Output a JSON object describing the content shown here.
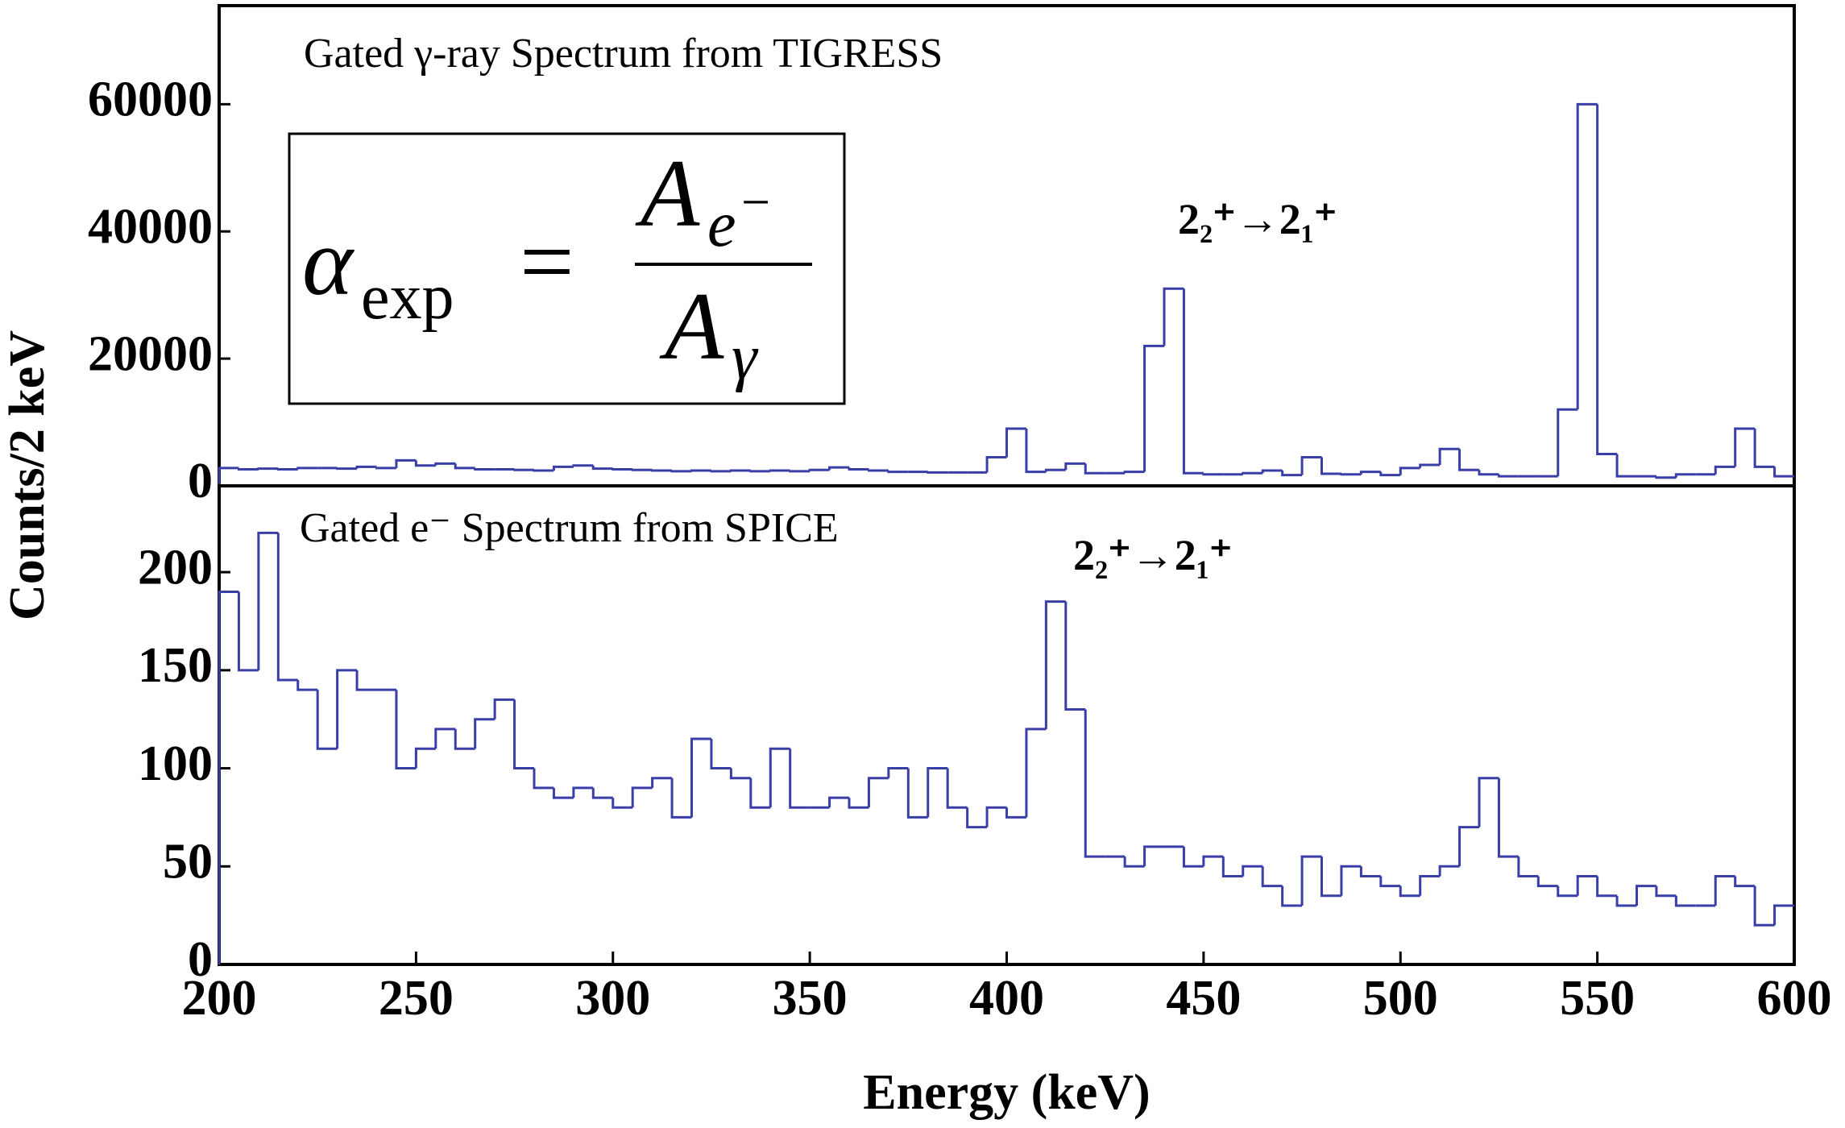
{
  "chart_data": [
    {
      "type": "histogram",
      "title": "Gated γ-ray Spectrum from TIGRESS",
      "ylabel": "Counts/2 keV",
      "annotation": "2₂⁺→2₁⁺",
      "formula": {
        "alpha": "α",
        "alpha_sub": "exp",
        "equals": "=",
        "num": "A",
        "num_sub": "e",
        "num_sup": "−",
        "den": "A",
        "den_sub": "γ"
      },
      "color": "#3a3fa8",
      "xlim": [
        200,
        600
      ],
      "ylim": [
        0,
        75500
      ],
      "yticks": [
        0,
        20000,
        40000,
        60000
      ],
      "bins": [
        200,
        205,
        210,
        215,
        220,
        225,
        230,
        235,
        240,
        245,
        250,
        255,
        260,
        265,
        270,
        275,
        280,
        285,
        290,
        295,
        300,
        305,
        310,
        315,
        320,
        325,
        330,
        335,
        340,
        345,
        350,
        355,
        360,
        365,
        370,
        375,
        380,
        385,
        390,
        395,
        400,
        405,
        410,
        415,
        420,
        425,
        430,
        435,
        440,
        445,
        450,
        455,
        460,
        465,
        470,
        475,
        480,
        485,
        490,
        495,
        500,
        505,
        510,
        515,
        520,
        525,
        530,
        535,
        540,
        545,
        550,
        555,
        560,
        565,
        570,
        575,
        580,
        585,
        590,
        595,
        600
      ],
      "values": [
        2800,
        2600,
        2700,
        2600,
        2800,
        2800,
        2700,
        3000,
        2800,
        4000,
        3200,
        3500,
        2800,
        2600,
        2600,
        2500,
        2400,
        3000,
        3200,
        2700,
        2600,
        2500,
        2400,
        2300,
        2400,
        2300,
        2400,
        2300,
        2400,
        2300,
        2500,
        2900,
        2600,
        2400,
        2200,
        2200,
        2100,
        2100,
        2100,
        4500,
        9000,
        2200,
        2500,
        3500,
        2000,
        2000,
        2200,
        22000,
        31000,
        2000,
        1800,
        1800,
        2000,
        2400,
        1700,
        4500,
        1900,
        1800,
        2200,
        1700,
        2800,
        3300,
        5800,
        2500,
        1800,
        1500,
        1500,
        1500,
        12000,
        60000,
        5000,
        1500,
        1500,
        1300,
        1800,
        1800,
        3000,
        9000,
        3000,
        1500
      ]
    },
    {
      "type": "histogram",
      "title": "Gated e⁻ Spectrum from SPICE",
      "xlabel": "Energy (keV)",
      "annotation": "2₂⁺→2₁⁺",
      "color": "#3a3fa8",
      "xlim": [
        200,
        600
      ],
      "ylim": [
        0,
        244
      ],
      "yticks": [
        0,
        50,
        100,
        150,
        200
      ],
      "xticks": [
        200,
        250,
        300,
        350,
        400,
        450,
        500,
        550,
        600
      ],
      "bins": [
        200,
        205,
        210,
        215,
        220,
        225,
        230,
        235,
        240,
        245,
        250,
        255,
        260,
        265,
        270,
        275,
        280,
        285,
        290,
        295,
        300,
        305,
        310,
        315,
        320,
        325,
        330,
        335,
        340,
        345,
        350,
        355,
        360,
        365,
        370,
        375,
        380,
        385,
        390,
        395,
        400,
        405,
        410,
        415,
        420,
        425,
        430,
        435,
        440,
        445,
        450,
        455,
        460,
        465,
        470,
        475,
        480,
        485,
        490,
        495,
        500,
        505,
        510,
        515,
        520,
        525,
        530,
        535,
        540,
        545,
        550,
        555,
        560,
        565,
        570,
        575,
        580,
        585,
        590,
        595,
        600
      ],
      "values": [
        190,
        150,
        220,
        145,
        140,
        110,
        150,
        140,
        140,
        100,
        110,
        120,
        110,
        125,
        135,
        100,
        90,
        85,
        90,
        85,
        80,
        90,
        95,
        75,
        115,
        100,
        95,
        80,
        110,
        80,
        80,
        85,
        80,
        95,
        100,
        75,
        100,
        80,
        70,
        80,
        75,
        120,
        185,
        130,
        55,
        55,
        50,
        60,
        60,
        50,
        55,
        45,
        50,
        40,
        30,
        55,
        35,
        50,
        45,
        40,
        35,
        45,
        50,
        70,
        95,
        55,
        45,
        40,
        35,
        45,
        35,
        30,
        40,
        35,
        30,
        30,
        45,
        40,
        20,
        30
      ]
    }
  ]
}
